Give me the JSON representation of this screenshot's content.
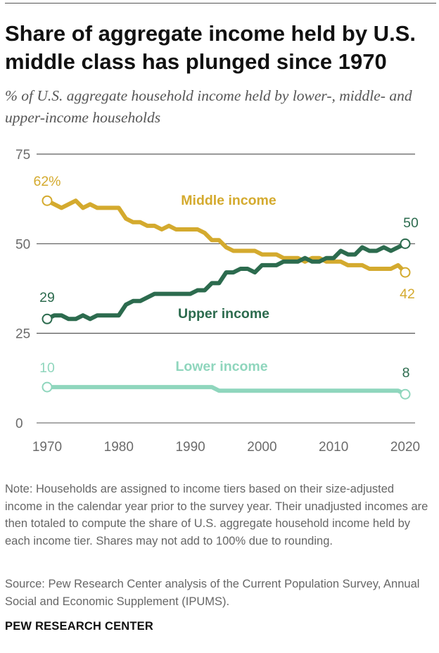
{
  "header": {
    "title": "Share of aggregate income held by U.S. middle class has plunged since 1970",
    "subtitle": "% of U.S. aggregate household income held by lower-, middle- and upper-income households"
  },
  "chart_data": {
    "type": "line",
    "title": "Share of aggregate income held by U.S. middle class has plunged since 1970",
    "subtitle": "% of U.S. aggregate household income held by lower-, middle- and upper-income households",
    "xlabel": "",
    "ylabel": "",
    "xlim": [
      1970,
      2020
    ],
    "ylim": [
      0,
      75
    ],
    "grid": true,
    "x_ticks": [
      1970,
      1980,
      1990,
      2000,
      2010,
      2020
    ],
    "y_ticks": [
      0,
      25,
      50,
      75
    ],
    "x": [
      1970,
      1971,
      1972,
      1973,
      1974,
      1975,
      1976,
      1977,
      1978,
      1979,
      1980,
      1981,
      1982,
      1983,
      1984,
      1985,
      1986,
      1987,
      1988,
      1989,
      1990,
      1991,
      1992,
      1993,
      1994,
      1995,
      1996,
      1997,
      1998,
      1999,
      2000,
      2001,
      2002,
      2003,
      2004,
      2005,
      2006,
      2007,
      2008,
      2009,
      2010,
      2011,
      2012,
      2013,
      2014,
      2015,
      2016,
      2017,
      2018,
      2019,
      2020
    ],
    "series": [
      {
        "name": "Middle income",
        "color": "#d4aa2e",
        "start_label": "62%",
        "end_label": "42",
        "values": [
          62,
          61,
          60,
          61,
          62,
          60,
          61,
          60,
          60,
          60,
          60,
          57,
          56,
          56,
          55,
          55,
          54,
          55,
          54,
          54,
          54,
          54,
          53,
          51,
          51,
          49,
          48,
          48,
          48,
          48,
          47,
          47,
          47,
          46,
          46,
          46,
          45,
          46,
          46,
          45,
          45,
          45,
          44,
          44,
          44,
          43,
          43,
          43,
          43,
          44,
          42
        ]
      },
      {
        "name": "Upper income",
        "color": "#2c6b4e",
        "start_label": "29",
        "end_label": "50",
        "values": [
          29,
          30,
          30,
          29,
          29,
          30,
          29,
          30,
          30,
          30,
          30,
          33,
          34,
          34,
          35,
          36,
          36,
          36,
          36,
          36,
          36,
          37,
          37,
          39,
          39,
          42,
          42,
          43,
          43,
          42,
          44,
          44,
          44,
          45,
          45,
          45,
          46,
          45,
          45,
          46,
          46,
          48,
          47,
          47,
          49,
          48,
          48,
          49,
          48,
          49,
          50
        ]
      },
      {
        "name": "Lower income",
        "color": "#8fd6bd",
        "start_label": "10",
        "end_label": "8",
        "values": [
          10,
          10,
          10,
          10,
          10,
          10,
          10,
          10,
          10,
          10,
          10,
          10,
          10,
          10,
          10,
          10,
          10,
          10,
          10,
          10,
          10,
          10,
          10,
          10,
          9,
          9,
          9,
          9,
          9,
          9,
          9,
          9,
          9,
          9,
          9,
          9,
          9,
          9,
          9,
          9,
          9,
          9,
          9,
          9,
          9,
          9,
          9,
          9,
          9,
          9,
          8
        ]
      }
    ]
  },
  "footer": {
    "note": "Note: Households are assigned to income tiers based on their size-adjusted income in the calendar year prior to the survey year. Their unadjusted incomes are then totaled to compute the share of U.S. aggregate household income held by each income tier. Shares may not add to 100% due to rounding.",
    "source": "Source: Pew Research Center analysis of the Current Population Survey, Annual Social and Economic Supplement (IPUMS).",
    "logo": "PEW RESEARCH CENTER"
  }
}
